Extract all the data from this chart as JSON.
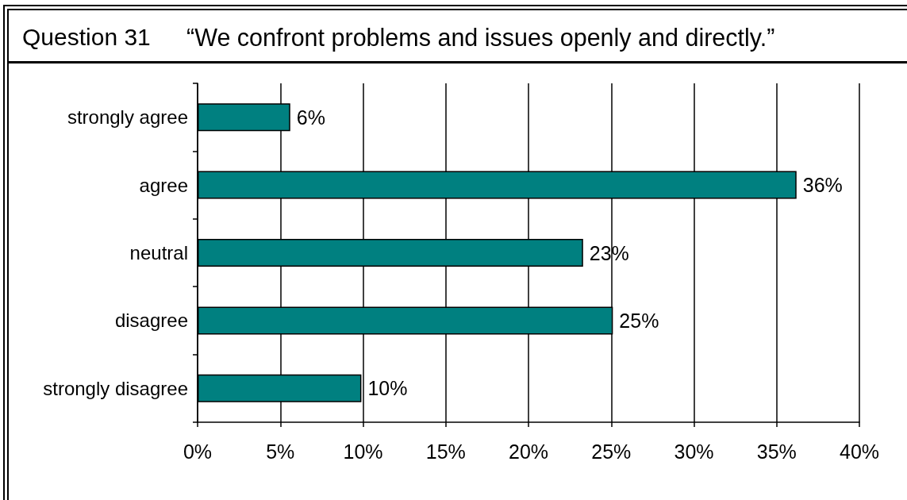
{
  "chart_data": {
    "type": "bar",
    "orientation": "horizontal",
    "title": "Question 31",
    "subtitle": "“We confront problems and issues openly and directly.”",
    "categories": [
      "strongly agree",
      "agree",
      "neutral",
      "disagree",
      "strongly disagree"
    ],
    "values": [
      5.6,
      36.2,
      23.3,
      25.1,
      9.9
    ],
    "value_labels": [
      "6%",
      "36%",
      "23%",
      "25%",
      "10%"
    ],
    "color": "#008080",
    "xlim": [
      0,
      40
    ],
    "xticks": [
      {
        "value": 0,
        "label": "0%"
      },
      {
        "value": 5,
        "label": "5%"
      },
      {
        "value": 10,
        "label": "10%"
      },
      {
        "value": 15,
        "label": "15%"
      },
      {
        "value": 20,
        "label": "20%"
      },
      {
        "value": 25,
        "label": "25%"
      },
      {
        "value": 30,
        "label": "30%"
      },
      {
        "value": 35,
        "label": "35%"
      },
      {
        "value": 40,
        "label": "40%"
      }
    ],
    "grid": "x"
  }
}
